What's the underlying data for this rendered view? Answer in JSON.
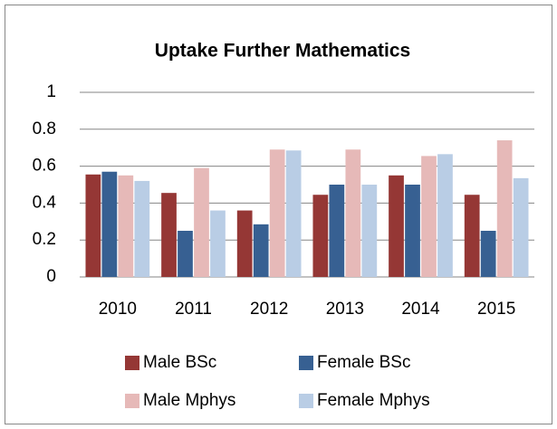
{
  "chart_data": {
    "type": "bar",
    "title": "Uptake Further Mathematics",
    "categories": [
      "2010",
      "2011",
      "2012",
      "2013",
      "2014",
      "2015"
    ],
    "series": [
      {
        "name": "Male BSc",
        "color": "#953735",
        "values": [
          0.555,
          0.455,
          0.36,
          0.445,
          0.55,
          0.445
        ]
      },
      {
        "name": "Female BSc",
        "color": "#376092",
        "values": [
          0.57,
          0.25,
          0.285,
          0.5,
          0.5,
          0.25
        ]
      },
      {
        "name": "Male Mphys",
        "color": "#e6b9b8",
        "values": [
          0.55,
          0.59,
          0.69,
          0.69,
          0.655,
          0.74
        ]
      },
      {
        "name": "Female Mphys",
        "color": "#b9cde5",
        "values": [
          0.52,
          0.36,
          0.685,
          0.5,
          0.665,
          0.535
        ]
      }
    ],
    "ylim": [
      0,
      1
    ],
    "yticks": [
      0,
      0.2,
      0.4,
      0.6,
      0.8,
      1
    ],
    "grid": true,
    "legend": "bottom"
  }
}
